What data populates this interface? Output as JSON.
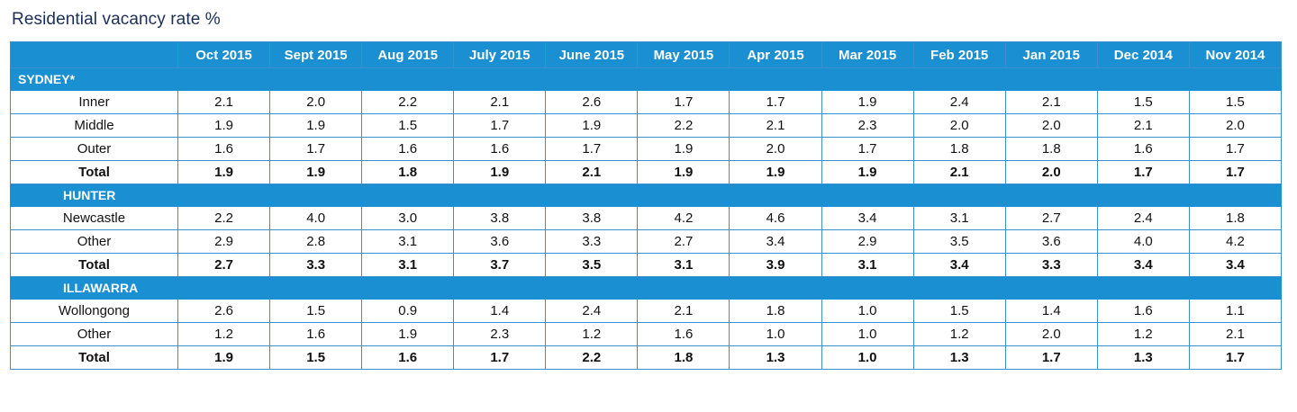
{
  "title": "Residential vacancy rate %",
  "columns": [
    "Oct 2015",
    "Sept 2015",
    "Aug 2015",
    "July 2015",
    "June 2015",
    "May 2015",
    "Apr 2015",
    "Mar 2015",
    "Feb 2015",
    "Jan 2015",
    "Dec 2014",
    "Nov 2014"
  ],
  "sections": [
    {
      "name": "SYDNEY*",
      "rows": [
        {
          "label": "Inner",
          "values": [
            "2.1",
            "2.0",
            "2.2",
            "2.1",
            "2.6",
            "1.7",
            "1.7",
            "1.9",
            "2.4",
            "2.1",
            "1.5",
            "1.5"
          ]
        },
        {
          "label": "Middle",
          "values": [
            "1.9",
            "1.9",
            "1.5",
            "1.7",
            "1.9",
            "2.2",
            "2.1",
            "2.3",
            "2.0",
            "2.0",
            "2.1",
            "2.0"
          ]
        },
        {
          "label": "Outer",
          "values": [
            "1.6",
            "1.7",
            "1.6",
            "1.6",
            "1.7",
            "1.9",
            "2.0",
            "1.7",
            "1.8",
            "1.8",
            "1.6",
            "1.7"
          ]
        },
        {
          "label": "Total",
          "total": true,
          "values": [
            "1.9",
            "1.9",
            "1.8",
            "1.9",
            "2.1",
            "1.9",
            "1.9",
            "1.9",
            "2.1",
            "2.0",
            "1.7",
            "1.7"
          ]
        }
      ]
    },
    {
      "name": "HUNTER",
      "rows": [
        {
          "label": "Newcastle",
          "values": [
            "2.2",
            "4.0",
            "3.0",
            "3.8",
            "3.8",
            "4.2",
            "4.6",
            "3.4",
            "3.1",
            "2.7",
            "2.4",
            "1.8"
          ]
        },
        {
          "label": "Other",
          "values": [
            "2.9",
            "2.8",
            "3.1",
            "3.6",
            "3.3",
            "2.7",
            "3.4",
            "2.9",
            "3.5",
            "3.6",
            "4.0",
            "4.2"
          ]
        },
        {
          "label": "Total",
          "total": true,
          "values": [
            "2.7",
            "3.3",
            "3.1",
            "3.7",
            "3.5",
            "3.1",
            "3.9",
            "3.1",
            "3.4",
            "3.3",
            "3.4",
            "3.4"
          ]
        }
      ]
    },
    {
      "name": "ILLAWARRA",
      "rows": [
        {
          "label": "Wollongong",
          "values": [
            "2.6",
            "1.5",
            "0.9",
            "1.4",
            "2.4",
            "2.1",
            "1.8",
            "1.0",
            "1.5",
            "1.4",
            "1.6",
            "1.1"
          ]
        },
        {
          "label": "Other",
          "values": [
            "1.2",
            "1.6",
            "1.9",
            "2.3",
            "1.2",
            "1.6",
            "1.0",
            "1.0",
            "1.2",
            "2.0",
            "1.2",
            "2.1"
          ]
        },
        {
          "label": "Total",
          "total": true,
          "values": [
            "1.9",
            "1.5",
            "1.6",
            "1.7",
            "2.2",
            "1.8",
            "1.3",
            "1.0",
            "1.3",
            "1.7",
            "1.3",
            "1.7"
          ]
        }
      ]
    }
  ],
  "colors": {
    "header_blue": "#1a8fd2",
    "border_blue": "#3a8fcc",
    "title_navy": "#1a2f5a"
  }
}
